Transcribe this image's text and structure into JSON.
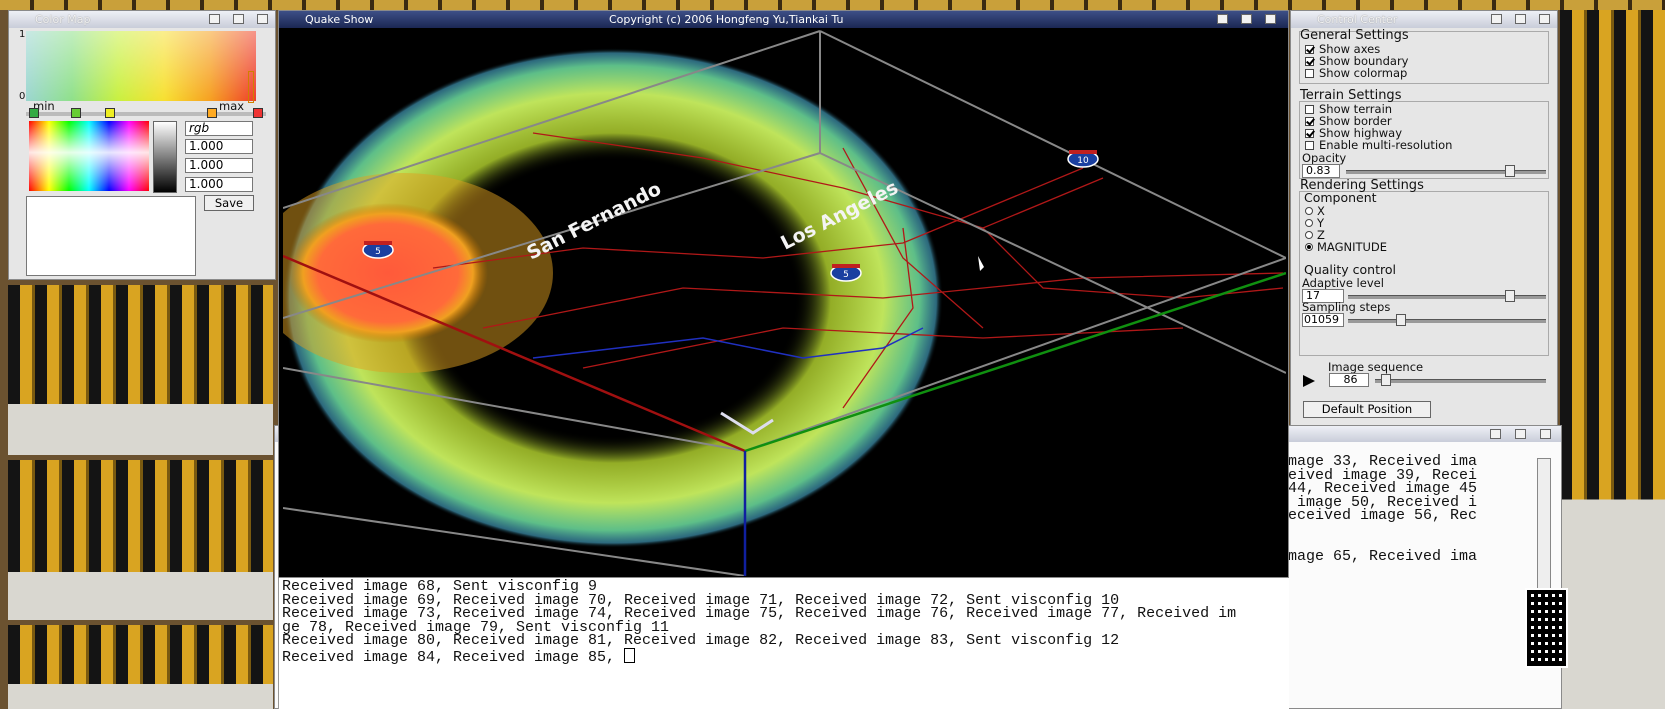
{
  "colormap": {
    "title": "Color Map",
    "top_label": "1",
    "bottom_label": "0",
    "min_label": "min",
    "max_label": "max",
    "mode": "rgb",
    "fields": [
      "1.000",
      "1.000",
      "1.000"
    ],
    "save": "Save"
  },
  "viewer": {
    "title": "Quake Show",
    "copyright": "Copyright (c) 2006 Hongfeng Yu,Tiankai Tu",
    "places": [
      "San Fernando",
      "Los Angeles"
    ],
    "shields": [
      "5",
      "5",
      "10"
    ]
  },
  "control": {
    "title": "Control Center",
    "general": {
      "heading": "General Settings",
      "options": [
        {
          "label": "Show axes",
          "checked": true
        },
        {
          "label": "Show boundary",
          "checked": true
        },
        {
          "label": "Show colormap",
          "checked": false
        }
      ]
    },
    "terrain": {
      "heading": "Terrain Settings",
      "options": [
        {
          "label": "Show terrain",
          "checked": false
        },
        {
          "label": "Show border",
          "checked": true
        },
        {
          "label": "Show highway",
          "checked": true
        },
        {
          "label": "Enable multi-resolution",
          "checked": false
        }
      ],
      "opacity_label": "Opacity",
      "opacity": "0.83"
    },
    "rendering": {
      "heading": "Rendering Settings",
      "component_label": "Component",
      "components": [
        "X",
        "Y",
        "Z",
        "MAGNITUDE"
      ],
      "selected": 3,
      "quality_label": "Quality control",
      "adaptive_label": "Adaptive level",
      "adaptive": "17",
      "sampling_label": "Sampling steps",
      "sampling": "01059",
      "sequence_label": "Image sequence",
      "sequence": "86"
    },
    "default_button": "Default Position"
  },
  "console_back": {
    "lines": [
      "mage 33, Received ima",
      "eived image 39, Recei",
      "44, Received image 45",
      " image 50, Received i",
      "eceived image 56, Rec",
      "mage 65, Received ima"
    ]
  },
  "console": {
    "lines": [
      "Received image 68, Sent visconfig 9",
      "Received image 69, Received image 70, Received image 71, Received image 72, Sent visconfig 10",
      "Received image 73, Received image 74, Received image 75, Received image 76, Received image 77, Received im",
      "ge 78, Received image 79, Sent visconfig 11",
      "Received image 80, Received image 81, Received image 82, Received image 83, Sent visconfig 12",
      "Received image 84, Received image 85, "
    ]
  }
}
